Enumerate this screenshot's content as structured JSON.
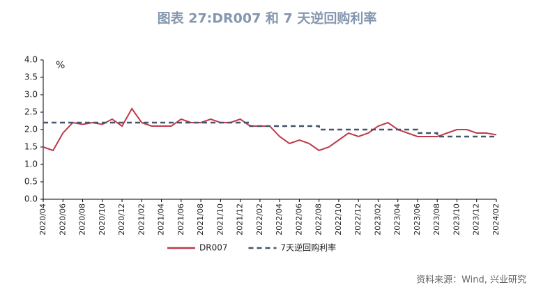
{
  "chart_data": {
    "type": "line",
    "title": "图表 27:DR007 和 7 天逆回购利率",
    "y_label": "%",
    "source": "资料来源：Wind, 兴业研究",
    "x": [
      "2020/04",
      "2020/05",
      "2020/06",
      "2020/07",
      "2020/08",
      "2020/09",
      "2020/10",
      "2020/11",
      "2020/12",
      "2021/01",
      "2021/02",
      "2021/03",
      "2021/04",
      "2021/05",
      "2021/06",
      "2021/07",
      "2021/08",
      "2021/09",
      "2021/10",
      "2021/11",
      "2021/12",
      "2022/01",
      "2022/02",
      "2022/03",
      "2022/04",
      "2022/05",
      "2022/06",
      "2022/07",
      "2022/08",
      "2022/09",
      "2022/10",
      "2022/11",
      "2022/12",
      "2023/01",
      "2023/02",
      "2023/03",
      "2023/04",
      "2023/05",
      "2023/06",
      "2023/07",
      "2023/08",
      "2023/09",
      "2023/10",
      "2023/11",
      "2023/12",
      "2024/01",
      "2024/02"
    ],
    "xticks": [
      "2020/04",
      "2020/06",
      "2020/08",
      "2020/10",
      "2020/12",
      "2021/02",
      "2021/04",
      "2021/06",
      "2021/08",
      "2021/10",
      "2021/12",
      "2022/02",
      "2022/04",
      "2022/06",
      "2022/08",
      "2022/10",
      "2022/12",
      "2023/02",
      "2023/04",
      "2023/06",
      "2023/08",
      "2023/10",
      "2023/12",
      "2024/02"
    ],
    "series": [
      {
        "name": "DR007",
        "color": "#c0394a",
        "dash": false,
        "values": [
          1.5,
          1.4,
          1.9,
          2.2,
          2.15,
          2.2,
          2.15,
          2.3,
          2.1,
          2.6,
          2.2,
          2.1,
          2.1,
          2.1,
          2.3,
          2.2,
          2.2,
          2.3,
          2.2,
          2.2,
          2.3,
          2.1,
          2.1,
          2.1,
          1.8,
          1.6,
          1.7,
          1.6,
          1.4,
          1.5,
          1.7,
          1.9,
          1.8,
          1.9,
          2.1,
          2.2,
          2.0,
          1.9,
          1.8,
          1.8,
          1.8,
          1.9,
          2.0,
          2.0,
          1.9,
          1.9,
          1.85
        ]
      },
      {
        "name": "7天逆回购利率",
        "color": "#44546a",
        "dash": true,
        "step": true,
        "values": [
          2.2,
          2.2,
          2.2,
          2.2,
          2.2,
          2.2,
          2.2,
          2.2,
          2.2,
          2.2,
          2.2,
          2.2,
          2.2,
          2.2,
          2.2,
          2.2,
          2.2,
          2.2,
          2.2,
          2.2,
          2.2,
          2.1,
          2.1,
          2.1,
          2.1,
          2.1,
          2.1,
          2.1,
          2.0,
          2.0,
          2.0,
          2.0,
          2.0,
          2.0,
          2.0,
          2.0,
          2.0,
          2.0,
          1.9,
          1.9,
          1.8,
          1.8,
          1.8,
          1.8,
          1.8,
          1.8,
          1.8
        ]
      }
    ],
    "ylim": [
      0,
      4
    ],
    "yticks": [
      {
        "value": 0,
        "label": "0.0"
      },
      {
        "value": 0.5,
        "label": "0.5"
      },
      {
        "value": 1,
        "label": "1.0"
      },
      {
        "value": 1.5,
        "label": "1.5"
      },
      {
        "value": 2,
        "label": "2.0"
      },
      {
        "value": 2.5,
        "label": "2.5"
      },
      {
        "value": 3,
        "label": "3.0"
      },
      {
        "value": 3.5,
        "label": "3.5"
      },
      {
        "value": 4,
        "label": "4.0"
      }
    ],
    "grid": false,
    "legend": "bottom"
  }
}
